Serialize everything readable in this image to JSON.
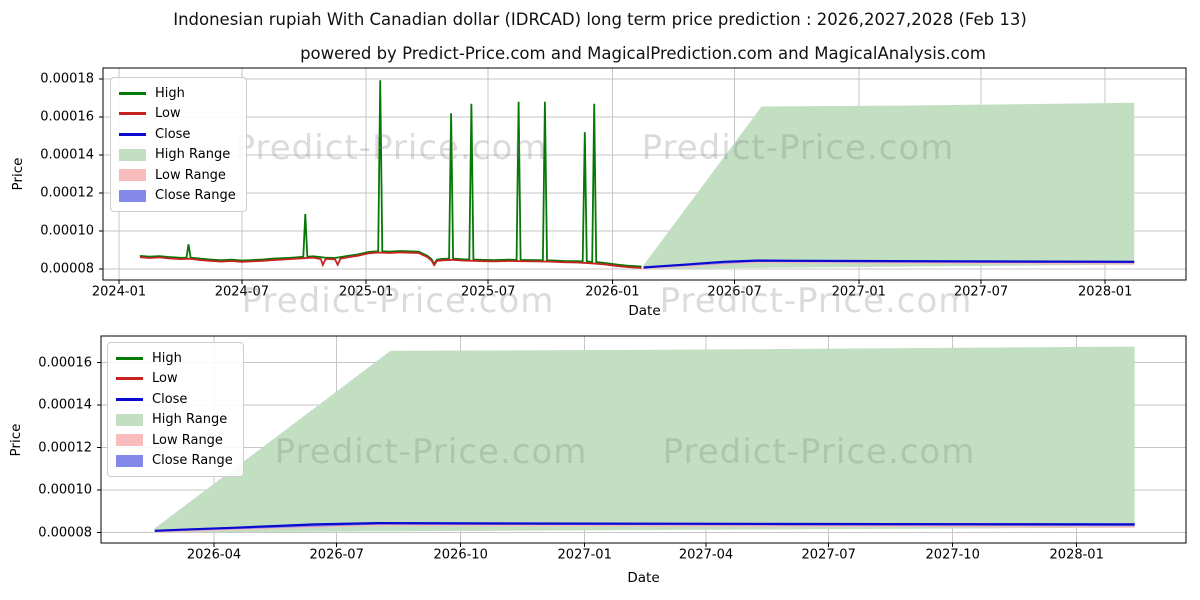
{
  "header": {
    "title": "Indonesian rupiah With Canadian dollar (IDRCAD) long term price prediction : 2026,2027,2028 (Feb 13)",
    "subtitle": "powered by Predict-Price.com and MagicalPrediction.com and MagicalAnalysis.com"
  },
  "watermark_text": "Predict-Price.com",
  "colors": {
    "high_line": "#067806",
    "low_line": "#c62222",
    "close_line": "#0b0bd0",
    "high_range_fill": "#c2dfc2",
    "low_range_fill": "#f9bcbc",
    "close_range_fill": "#8488e8",
    "grid": "#c6c6c6",
    "frame": "#000000"
  },
  "legend": {
    "entries": [
      {
        "label": "High",
        "type": "line",
        "color": "#067806"
      },
      {
        "label": "Low",
        "type": "line",
        "color": "#c62222"
      },
      {
        "label": "Close",
        "type": "line",
        "color": "#0b0bd0"
      },
      {
        "label": "High Range",
        "type": "patch",
        "color": "#c2dfc2"
      },
      {
        "label": "Low Range",
        "type": "patch",
        "color": "#f9bcbc"
      },
      {
        "label": "Close Range",
        "type": "patch",
        "color": "#8488e8"
      }
    ]
  },
  "chart_data": [
    {
      "id": "history-and-forecast",
      "type": "line",
      "xlabel": "Date",
      "ylabel": "Price",
      "grid": true,
      "legend_position": "upper-left",
      "x_ticks": [
        {
          "label": "2024-01",
          "date": "2024-01-01"
        },
        {
          "label": "2024-07",
          "date": "2024-07-01"
        },
        {
          "label": "2025-01",
          "date": "2025-01-01"
        },
        {
          "label": "2025-07",
          "date": "2025-07-01"
        },
        {
          "label": "2026-01",
          "date": "2026-01-01"
        },
        {
          "label": "2026-07",
          "date": "2026-07-01"
        },
        {
          "label": "2027-01",
          "date": "2027-01-01"
        },
        {
          "label": "2027-07",
          "date": "2027-07-01"
        },
        {
          "label": "2028-01",
          "date": "2028-01-01"
        }
      ],
      "y_ticks": [
        8e-05,
        0.0001,
        0.00012,
        0.00014,
        0.00016,
        0.00018
      ],
      "ylim": [
        7.37e-05,
        0.000186
      ],
      "series": {
        "high": [
          [
            "2024-02-01",
            8.69e-05
          ],
          [
            "2024-02-15",
            8.65e-05
          ],
          [
            "2024-03-01",
            8.68e-05
          ],
          [
            "2024-03-15",
            8.63e-05
          ],
          [
            "2024-04-01",
            8.59e-05
          ],
          [
            "2024-04-10",
            8.6e-05
          ],
          [
            "2024-04-13",
            9.3e-05
          ],
          [
            "2024-04-16",
            8.6e-05
          ],
          [
            "2024-05-01",
            8.54e-05
          ],
          [
            "2024-05-15",
            8.5e-05
          ],
          [
            "2024-06-01",
            8.46e-05
          ],
          [
            "2024-06-15",
            8.49e-05
          ],
          [
            "2024-07-01",
            8.45e-05
          ],
          [
            "2024-07-15",
            8.47e-05
          ],
          [
            "2024-08-01",
            8.5e-05
          ],
          [
            "2024-08-15",
            8.54e-05
          ],
          [
            "2024-09-01",
            8.57e-05
          ],
          [
            "2024-09-15",
            8.6e-05
          ],
          [
            "2024-09-30",
            8.64e-05
          ],
          [
            "2024-10-03",
            0.000109
          ],
          [
            "2024-10-06",
            8.64e-05
          ],
          [
            "2024-10-15",
            8.67e-05
          ],
          [
            "2024-11-01",
            8.6e-05
          ],
          [
            "2024-11-16",
            8.58e-05
          ],
          [
            "2024-12-05",
            8.69e-05
          ],
          [
            "2024-12-20",
            8.77e-05
          ],
          [
            "2025-01-05",
            8.9e-05
          ],
          [
            "2025-01-19",
            8.93e-05
          ],
          [
            "2025-01-22",
            0.0001793
          ],
          [
            "2025-01-25",
            8.93e-05
          ],
          [
            "2025-02-05",
            8.91e-05
          ],
          [
            "2025-02-20",
            8.95e-05
          ],
          [
            "2025-03-05",
            8.93e-05
          ],
          [
            "2025-03-20",
            8.91e-05
          ],
          [
            "2025-04-02",
            8.69e-05
          ],
          [
            "2025-04-08",
            8.52e-05
          ],
          [
            "2025-04-12",
            8.27e-05
          ],
          [
            "2025-04-16",
            8.49e-05
          ],
          [
            "2025-04-24",
            8.53e-05
          ],
          [
            "2025-05-04",
            8.55e-05
          ],
          [
            "2025-05-07",
            0.000162
          ],
          [
            "2025-05-10",
            8.55e-05
          ],
          [
            "2025-05-25",
            8.51e-05
          ],
          [
            "2025-06-03",
            8.5e-05
          ],
          [
            "2025-06-06",
            0.000167
          ],
          [
            "2025-06-09",
            8.5e-05
          ],
          [
            "2025-06-25",
            8.48e-05
          ],
          [
            "2025-07-10",
            8.47e-05
          ],
          [
            "2025-08-01",
            8.49e-05
          ],
          [
            "2025-08-12",
            8.48e-05
          ],
          [
            "2025-08-15",
            0.000168
          ],
          [
            "2025-08-18",
            8.48e-05
          ],
          [
            "2025-09-10",
            8.47e-05
          ],
          [
            "2025-09-20",
            8.46e-05
          ],
          [
            "2025-09-23",
            0.000168
          ],
          [
            "2025-09-26",
            8.46e-05
          ],
          [
            "2025-10-10",
            8.44e-05
          ],
          [
            "2025-10-25",
            8.41e-05
          ],
          [
            "2025-11-10",
            8.41e-05
          ],
          [
            "2025-11-18",
            8.4e-05
          ],
          [
            "2025-11-21",
            0.000152
          ],
          [
            "2025-11-24",
            8.4e-05
          ],
          [
            "2025-12-02",
            8.37e-05
          ],
          [
            "2025-12-05",
            0.000167
          ],
          [
            "2025-12-08",
            8.37e-05
          ],
          [
            "2025-12-20",
            8.32e-05
          ],
          [
            "2026-01-10",
            8.22e-05
          ],
          [
            "2026-01-25",
            8.17e-05
          ],
          [
            "2026-02-13",
            8.13e-05
          ]
        ],
        "low": [
          [
            "2024-02-01",
            8.62e-05
          ],
          [
            "2024-02-15",
            8.58e-05
          ],
          [
            "2024-03-01",
            8.61e-05
          ],
          [
            "2024-03-15",
            8.56e-05
          ],
          [
            "2024-04-01",
            8.52e-05
          ],
          [
            "2024-04-15",
            8.54e-05
          ],
          [
            "2024-05-01",
            8.47e-05
          ],
          [
            "2024-05-15",
            8.43e-05
          ],
          [
            "2024-06-01",
            8.39e-05
          ],
          [
            "2024-06-15",
            8.42e-05
          ],
          [
            "2024-07-01",
            8.38e-05
          ],
          [
            "2024-07-15",
            8.4e-05
          ],
          [
            "2024-08-01",
            8.43e-05
          ],
          [
            "2024-08-15",
            8.47e-05
          ],
          [
            "2024-09-01",
            8.5e-05
          ],
          [
            "2024-09-15",
            8.53e-05
          ],
          [
            "2024-10-01",
            8.57e-05
          ],
          [
            "2024-10-15",
            8.6e-05
          ],
          [
            "2024-10-26",
            8.52e-05
          ],
          [
            "2024-10-29",
            8.21e-05
          ],
          [
            "2024-11-02",
            8.53e-05
          ],
          [
            "2024-11-16",
            8.51e-05
          ],
          [
            "2024-11-20",
            8.22e-05
          ],
          [
            "2024-11-24",
            8.54e-05
          ],
          [
            "2024-12-05",
            8.62e-05
          ],
          [
            "2024-12-20",
            8.7e-05
          ],
          [
            "2025-01-05",
            8.83e-05
          ],
          [
            "2025-01-20",
            8.87e-05
          ],
          [
            "2025-02-05",
            8.84e-05
          ],
          [
            "2025-02-20",
            8.88e-05
          ],
          [
            "2025-03-05",
            8.86e-05
          ],
          [
            "2025-03-20",
            8.84e-05
          ],
          [
            "2025-04-02",
            8.62e-05
          ],
          [
            "2025-04-08",
            8.45e-05
          ],
          [
            "2025-04-12",
            8.2e-05
          ],
          [
            "2025-04-16",
            8.42e-05
          ],
          [
            "2025-04-24",
            8.46e-05
          ],
          [
            "2025-05-10",
            8.48e-05
          ],
          [
            "2025-05-25",
            8.44e-05
          ],
          [
            "2025-06-10",
            8.43e-05
          ],
          [
            "2025-06-25",
            8.41e-05
          ],
          [
            "2025-07-10",
            8.4e-05
          ],
          [
            "2025-08-01",
            8.42e-05
          ],
          [
            "2025-08-20",
            8.41e-05
          ],
          [
            "2025-09-10",
            8.4e-05
          ],
          [
            "2025-10-01",
            8.39e-05
          ],
          [
            "2025-10-20",
            8.36e-05
          ],
          [
            "2025-11-10",
            8.34e-05
          ],
          [
            "2025-12-01",
            8.3e-05
          ],
          [
            "2025-12-20",
            8.25e-05
          ],
          [
            "2026-01-10",
            8.15e-05
          ],
          [
            "2026-01-25",
            8.1e-05
          ],
          [
            "2026-02-13",
            8.06e-05
          ]
        ],
        "close": [
          [
            "2026-02-16",
            8.08e-05
          ],
          [
            "2026-03-15",
            8.15e-05
          ],
          [
            "2026-04-15",
            8.22e-05
          ],
          [
            "2026-05-15",
            8.3e-05
          ],
          [
            "2026-06-15",
            8.38e-05
          ],
          [
            "2026-08-01",
            8.44e-05
          ],
          [
            "2026-10-01",
            8.43e-05
          ],
          [
            "2027-01-01",
            8.42e-05
          ],
          [
            "2027-06-01",
            8.4e-05
          ],
          [
            "2028-02-13",
            8.38e-05
          ]
        ],
        "high_range": {
          "top": [
            [
              "2026-02-16",
              8.2e-05
            ],
            [
              "2026-08-10",
              0.0001655
            ],
            [
              "2027-03-01",
              0.000166
            ],
            [
              "2028-02-13",
              0.0001675
            ]
          ],
          "bottom": [
            [
              "2026-02-16",
              8e-05
            ],
            [
              "2028-02-13",
              8.23e-05
            ]
          ]
        },
        "low_range": {
          "top": [
            [
              "2026-02-16",
              8.06e-05
            ],
            [
              "2026-08-01",
              8.4e-05
            ],
            [
              "2028-02-13",
              8.31e-05
            ]
          ],
          "bottom": [
            [
              "2026-02-16",
              7.99e-05
            ],
            [
              "2026-08-01",
              8.31e-05
            ],
            [
              "2028-02-13",
              8.23e-05
            ]
          ]
        },
        "close_range": {
          "top": [
            [
              "2026-02-16",
              8.13e-05
            ],
            [
              "2026-08-01",
              8.49e-05
            ],
            [
              "2028-02-13",
              8.43e-05
            ]
          ],
          "bottom": [
            [
              "2026-02-16",
              8.03e-05
            ],
            [
              "2026-08-01",
              8.37e-05
            ],
            [
              "2028-02-13",
              8.3e-05
            ]
          ]
        }
      }
    },
    {
      "id": "forecast-detail",
      "type": "line",
      "xlabel": "Date",
      "ylabel": "Price",
      "grid": true,
      "legend_position": "upper-left",
      "x_ticks": [
        {
          "label": "2026-04",
          "date": "2026-04-01"
        },
        {
          "label": "2026-07",
          "date": "2026-07-01"
        },
        {
          "label": "2026-10",
          "date": "2026-10-01"
        },
        {
          "label": "2027-01",
          "date": "2027-01-01"
        },
        {
          "label": "2027-04",
          "date": "2027-04-01"
        },
        {
          "label": "2027-07",
          "date": "2027-07-01"
        },
        {
          "label": "2027-10",
          "date": "2027-10-01"
        },
        {
          "label": "2028-01",
          "date": "2028-01-01"
        }
      ],
      "y_ticks": [
        8e-05,
        0.0001,
        0.00012,
        0.00014,
        0.00016
      ],
      "ylim": [
        7.53e-05,
        0.0001727
      ],
      "series": {
        "high": [],
        "low": [],
        "close": [
          [
            "2026-02-16",
            8.08e-05
          ],
          [
            "2026-03-15",
            8.15e-05
          ],
          [
            "2026-04-15",
            8.22e-05
          ],
          [
            "2026-05-15",
            8.3e-05
          ],
          [
            "2026-06-15",
            8.38e-05
          ],
          [
            "2026-08-01",
            8.44e-05
          ],
          [
            "2026-10-01",
            8.43e-05
          ],
          [
            "2027-01-01",
            8.42e-05
          ],
          [
            "2027-06-01",
            8.4e-05
          ],
          [
            "2028-02-13",
            8.38e-05
          ]
        ],
        "high_range": {
          "top": [
            [
              "2026-02-16",
              8.2e-05
            ],
            [
              "2026-08-10",
              0.0001655
            ],
            [
              "2027-03-01",
              0.000166
            ],
            [
              "2028-02-13",
              0.0001675
            ]
          ],
          "bottom": [
            [
              "2026-02-16",
              8e-05
            ],
            [
              "2028-02-13",
              8.23e-05
            ]
          ]
        },
        "low_range": {
          "top": [
            [
              "2026-02-16",
              8.06e-05
            ],
            [
              "2026-08-01",
              8.4e-05
            ],
            [
              "2028-02-13",
              8.31e-05
            ]
          ],
          "bottom": [
            [
              "2026-02-16",
              7.99e-05
            ],
            [
              "2026-08-01",
              8.31e-05
            ],
            [
              "2028-02-13",
              8.23e-05
            ]
          ]
        },
        "close_range": {
          "top": [
            [
              "2026-02-16",
              8.13e-05
            ],
            [
              "2026-08-01",
              8.49e-05
            ],
            [
              "2028-02-13",
              8.43e-05
            ]
          ],
          "bottom": [
            [
              "2026-02-16",
              8.03e-05
            ],
            [
              "2026-08-01",
              8.37e-05
            ],
            [
              "2028-02-13",
              8.3e-05
            ]
          ]
        }
      }
    }
  ]
}
